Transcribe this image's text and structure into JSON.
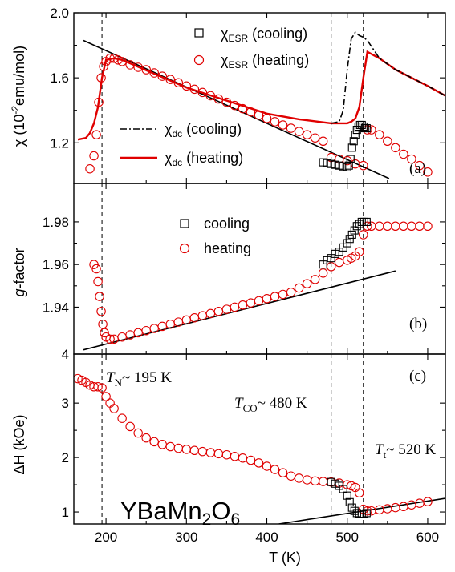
{
  "chart_data": [
    {
      "panel": "(a)",
      "type": "scatter",
      "ylabel_main": "χ (10",
      "ylabel_sup": "-2",
      "ylabel_tail": "emu/mol)",
      "ylim": [
        0.95,
        2.0
      ],
      "yticks": [
        "1.2",
        "1.6",
        "2.0"
      ],
      "legend": {
        "esr_cooling": {
          "main": "χ",
          "sub": "ESR",
          "tail": " (cooling)"
        },
        "esr_heating": {
          "main": "χ",
          "sub": "ESR",
          "tail": " (heating)"
        },
        "dc_cooling": {
          "main": "χ",
          "sub": "dc",
          "tail": " (cooling)"
        },
        "dc_heating": {
          "main": "χ",
          "sub": "dc",
          "tail": " (heating)"
        }
      },
      "series": [
        {
          "key": "dc_heating",
          "style": "line",
          "color": "#e00000",
          "x": [
            165,
            175,
            180,
            185,
            190,
            195,
            200,
            210,
            220,
            300,
            400,
            440,
            480,
            500,
            505,
            510,
            515,
            520,
            525,
            540,
            560,
            600,
            622
          ],
          "y": [
            1.22,
            1.23,
            1.26,
            1.32,
            1.42,
            1.6,
            1.71,
            1.72,
            1.71,
            1.54,
            1.38,
            1.345,
            1.32,
            1.32,
            1.33,
            1.35,
            1.42,
            1.6,
            1.76,
            1.72,
            1.65,
            1.55,
            1.49
          ]
        },
        {
          "key": "dc_cooling",
          "style": "dashdot",
          "color": "#000000",
          "x": [
            480,
            490,
            495,
            500,
            505,
            510,
            515,
            520,
            525,
            540,
            560,
            600,
            622
          ],
          "y": [
            1.32,
            1.33,
            1.4,
            1.65,
            1.84,
            1.88,
            1.86,
            1.85,
            1.83,
            1.72,
            1.65,
            1.55,
            1.49
          ]
        },
        {
          "key": "esr_heating",
          "style": "circle",
          "color": "#e00000",
          "x": [
            180,
            185,
            188,
            191,
            194,
            197,
            200,
            205,
            210,
            215,
            220,
            230,
            240,
            250,
            260,
            270,
            280,
            290,
            300,
            310,
            320,
            330,
            340,
            350,
            360,
            370,
            380,
            390,
            400,
            410,
            420,
            430,
            440,
            450,
            460,
            470,
            480,
            490,
            500,
            510,
            520,
            525,
            530,
            540,
            550,
            560,
            570,
            580,
            590,
            600
          ],
          "y": [
            1.04,
            1.12,
            1.25,
            1.45,
            1.6,
            1.67,
            1.7,
            1.72,
            1.72,
            1.71,
            1.7,
            1.68,
            1.665,
            1.65,
            1.63,
            1.61,
            1.59,
            1.57,
            1.55,
            1.53,
            1.51,
            1.49,
            1.47,
            1.45,
            1.43,
            1.41,
            1.39,
            1.37,
            1.35,
            1.33,
            1.31,
            1.29,
            1.27,
            1.25,
            1.23,
            1.21,
            1.11,
            1.1,
            1.09,
            1.07,
            1.06,
            1.28,
            1.28,
            1.25,
            1.21,
            1.17,
            1.13,
            1.1,
            1.06,
            1.02
          ]
        },
        {
          "key": "esr_cooling",
          "style": "square",
          "color": "#000000",
          "x": [
            470,
            475,
            480,
            485,
            490,
            495,
            500,
            502,
            504,
            506,
            508,
            510,
            512,
            514,
            516,
            518,
            520,
            522,
            524
          ],
          "y": [
            1.08,
            1.075,
            1.07,
            1.065,
            1.06,
            1.055,
            1.05,
            1.06,
            1.1,
            1.17,
            1.21,
            1.25,
            1.28,
            1.3,
            1.31,
            1.31,
            1.3,
            1.29,
            1.29
          ]
        }
      ],
      "fit_line": {
        "x": [
          172,
          552
        ],
        "y": [
          1.83,
          0.98
        ]
      }
    },
    {
      "panel": "(b)",
      "type": "scatter",
      "ylabel_italic": "g",
      "ylabel_tail": "-factor",
      "ylim": [
        1.918,
        1.998
      ],
      "yticks": [
        "1.94",
        "1.96",
        "1.98"
      ],
      "bottom_tick": "4",
      "legend": {
        "cooling": "cooling",
        "heating": "heating"
      },
      "series": [
        {
          "key": "heating",
          "style": "circle",
          "color": "#e00000",
          "x": [
            185,
            188,
            190,
            192,
            194,
            196,
            198,
            200,
            205,
            210,
            220,
            230,
            240,
            250,
            260,
            270,
            280,
            290,
            300,
            310,
            320,
            330,
            340,
            350,
            360,
            370,
            380,
            390,
            400,
            410,
            420,
            430,
            440,
            450,
            460,
            470,
            480,
            490,
            500,
            505,
            510,
            515,
            520,
            525,
            530,
            540,
            550,
            560,
            570,
            580,
            590,
            600
          ],
          "y": [
            1.96,
            1.958,
            1.952,
            1.945,
            1.938,
            1.932,
            1.928,
            1.926,
            1.925,
            1.925,
            1.926,
            1.927,
            1.928,
            1.929,
            1.93,
            1.931,
            1.932,
            1.933,
            1.934,
            1.935,
            1.936,
            1.937,
            1.938,
            1.939,
            1.94,
            1.941,
            1.942,
            1.943,
            1.944,
            1.945,
            1.946,
            1.947,
            1.949,
            1.951,
            1.953,
            1.956,
            1.959,
            1.961,
            1.962,
            1.963,
            1.964,
            1.966,
            1.974,
            1.978,
            1.978,
            1.978,
            1.978,
            1.978,
            1.978,
            1.978,
            1.978,
            1.978
          ]
        },
        {
          "key": "cooling",
          "style": "square",
          "color": "#000000",
          "x": [
            470,
            475,
            480,
            485,
            490,
            495,
            500,
            503,
            506,
            509,
            512,
            515,
            518,
            521,
            524
          ],
          "y": [
            1.96,
            1.962,
            1.963,
            1.965,
            1.966,
            1.968,
            1.97,
            1.972,
            1.974,
            1.976,
            1.978,
            1.979,
            1.98,
            1.98,
            1.98
          ]
        }
      ],
      "fit_line": {
        "x": [
          172,
          560
        ],
        "y": [
          1.92,
          1.957
        ]
      }
    },
    {
      "panel": "(c)",
      "type": "scatter",
      "ylabel": "ΔH (kOe)",
      "ylim": [
        0.78,
        3.9
      ],
      "yticks": [
        "1",
        "2",
        "3"
      ],
      "xlabel": "T (K)",
      "xlim": [
        160,
        622
      ],
      "xticks": [
        "200",
        "300",
        "400",
        "500",
        "600"
      ],
      "compound": {
        "main": "YBaMn",
        "sub1": "2",
        "mid": "O",
        "sub2": "6"
      },
      "annotations": {
        "tn": {
          "main": "T",
          "sub": "N",
          "tail": "~ 195 K"
        },
        "tco": {
          "main": "T",
          "sub": "CO",
          "tail": "~ 480 K"
        },
        "tt": {
          "main": "T",
          "sub": "t",
          "tail": "~ 520 K"
        }
      },
      "series": [
        {
          "key": "heating",
          "style": "circle",
          "color": "#e00000",
          "x": [
            165,
            170,
            175,
            180,
            185,
            190,
            195,
            200,
            205,
            210,
            220,
            230,
            240,
            250,
            260,
            270,
            280,
            290,
            300,
            310,
            320,
            330,
            340,
            350,
            360,
            370,
            380,
            390,
            400,
            410,
            420,
            430,
            440,
            450,
            460,
            470,
            480,
            490,
            500,
            505,
            510,
            515,
            520,
            525,
            530,
            540,
            550,
            560,
            570,
            580,
            590,
            600
          ],
          "y": [
            3.45,
            3.42,
            3.38,
            3.33,
            3.3,
            3.3,
            3.28,
            3.12,
            3.0,
            2.9,
            2.72,
            2.57,
            2.45,
            2.36,
            2.29,
            2.24,
            2.2,
            2.17,
            2.15,
            2.13,
            2.11,
            2.09,
            2.07,
            2.05,
            2.02,
            1.99,
            1.95,
            1.9,
            1.84,
            1.78,
            1.72,
            1.66,
            1.62,
            1.59,
            1.57,
            1.56,
            1.55,
            1.53,
            1.5,
            1.48,
            1.45,
            1.35,
            1.05,
            1.02,
            1.02,
            1.04,
            1.06,
            1.08,
            1.1,
            1.13,
            1.16,
            1.19
          ]
        },
        {
          "key": "cooling",
          "style": "square",
          "color": "#000000",
          "x": [
            480,
            485,
            490,
            495,
            500,
            503,
            506,
            509,
            512,
            515,
            518,
            521,
            524
          ],
          "y": [
            1.55,
            1.52,
            1.48,
            1.42,
            1.3,
            1.18,
            1.08,
            1.02,
            0.98,
            0.97,
            0.97,
            0.97,
            0.98
          ]
        }
      ],
      "fit_line": {
        "x": [
          415,
          622
        ],
        "y": [
          0.78,
          1.25
        ]
      }
    }
  ],
  "markers": {
    "dashed_x": [
      195,
      480,
      520
    ]
  }
}
